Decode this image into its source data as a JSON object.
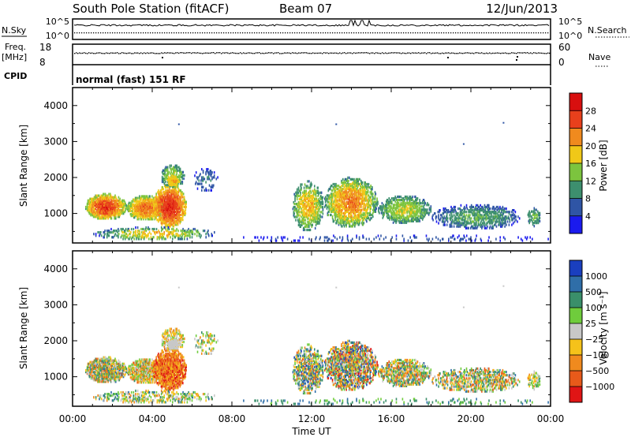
{
  "header": {
    "station": "South Pole Station (fitACF)",
    "beam": "Beam 07",
    "date": "12/Jun/2013"
  },
  "panels": {
    "nsky": {
      "label": "N.Sky",
      "ticks": [
        "10^5",
        "10^0"
      ],
      "right_label": "N.Search",
      "right_ticks": [
        "10^5",
        "10^0"
      ]
    },
    "freq": {
      "label_line1": "Freq.",
      "label_line2": "[MHz]",
      "ticks": [
        "18",
        "8"
      ],
      "right_label": "Nave",
      "right_ticks": [
        "60",
        "0"
      ]
    },
    "cpid": {
      "label": "CPID",
      "mode": "normal (fast) 151 RF"
    }
  },
  "chart_data": [
    {
      "type": "heatmap",
      "title": "",
      "xlabel": "",
      "ylabel": "Slant Range [km]",
      "ylim": [
        180,
        4500
      ],
      "yticks": [
        "1000",
        "2000",
        "3000",
        "4000"
      ],
      "xlim": [
        "00:00",
        "24:00"
      ],
      "xticks": [
        "00:00",
        "04:00",
        "08:00",
        "12:00",
        "16:00",
        "20:00",
        "00:00"
      ],
      "colorbar": {
        "label": "Power [dB]",
        "ticks": [
          "4",
          "8",
          "12",
          "16",
          "20",
          "24",
          "28"
        ],
        "colors": [
          "#1a1aee",
          "#2f55a5",
          "#3d8f6e",
          "#7cc43e",
          "#f0c818",
          "#f08a1e",
          "#e8401c",
          "#d80f0f"
        ]
      }
    },
    {
      "type": "heatmap",
      "title": "",
      "xlabel": "Time UT",
      "ylabel": "Slant Range [km]",
      "ylim": [
        180,
        4500
      ],
      "yticks": [
        "1000",
        "2000",
        "3000",
        "4000"
      ],
      "xlim": [
        "00:00",
        "24:00"
      ],
      "xticks": [
        "00:00",
        "04:00",
        "08:00",
        "12:00",
        "16:00",
        "20:00",
        "00:00"
      ],
      "colorbar": {
        "label": "Velocity [m s⁻¹]",
        "ticks": [
          "1000",
          "500",
          "100",
          "25",
          "−25",
          "−100",
          "−500",
          "−1000"
        ],
        "colors": [
          "#1a3fbf",
          "#2f6ea8",
          "#3a8f6a",
          "#6fcc3c",
          "#c8c8c8",
          "#f5c21a",
          "#f08a1e",
          "#e85a1a",
          "#e01515"
        ]
      }
    }
  ]
}
